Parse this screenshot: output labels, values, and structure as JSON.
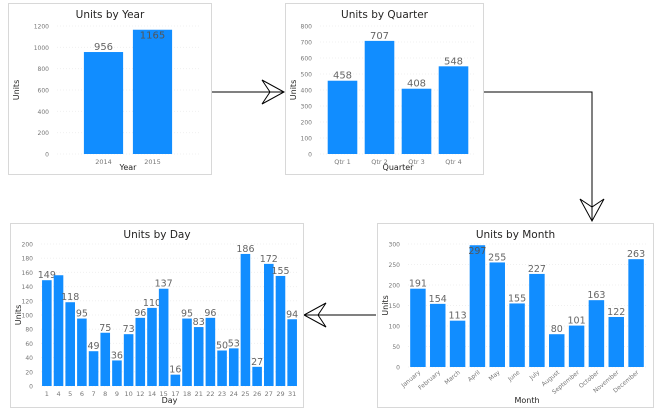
{
  "colors": {
    "bar": "#118DFF",
    "grid": "#f0f0f0",
    "tick": "#777777",
    "label": "#666666",
    "title": "#252423",
    "arrow": "#000000"
  },
  "chart_data": [
    {
      "id": "year",
      "type": "bar",
      "title": "Units by Year",
      "xlabel": "Year",
      "ylabel": "Units",
      "categories": [
        "2014",
        "2015"
      ],
      "values": [
        956,
        1165
      ],
      "data_labels": [
        "956",
        "1165"
      ],
      "ylim": [
        0,
        1200
      ],
      "yticks": [
        0,
        200,
        400,
        600,
        800,
        1000,
        1200
      ],
      "grid": true
    },
    {
      "id": "quarter",
      "type": "bar",
      "title": "Units by Quarter",
      "xlabel": "Quarter",
      "ylabel": "Units",
      "categories": [
        "Qtr 1",
        "Qtr 2",
        "Qtr 3",
        "Qtr 4"
      ],
      "values": [
        458,
        707,
        408,
        548
      ],
      "data_labels": [
        "458",
        "707",
        "408",
        "548"
      ],
      "ylim": [
        0,
        800
      ],
      "yticks": [
        0,
        100,
        200,
        300,
        400,
        500,
        600,
        700,
        800
      ],
      "grid": true
    },
    {
      "id": "month",
      "type": "bar",
      "title": "Units by Month",
      "xlabel": "Month",
      "ylabel": "Units",
      "categories": [
        "January",
        "February",
        "March",
        "April",
        "May",
        "June",
        "July",
        "August",
        "September",
        "October",
        "November",
        "December"
      ],
      "values": [
        191,
        154,
        113,
        297,
        255,
        155,
        227,
        80,
        101,
        163,
        122,
        263
      ],
      "data_labels": [
        "191",
        "154",
        "113",
        "297",
        "255",
        "155",
        "227",
        "80",
        "101",
        "163",
        "122",
        "263"
      ],
      "ylim": [
        0,
        300
      ],
      "yticks": [
        0,
        50,
        100,
        150,
        200,
        250,
        300
      ],
      "grid": true
    },
    {
      "id": "day",
      "type": "bar",
      "title": "Units by Day",
      "xlabel": "Day",
      "ylabel": "Units",
      "categories": [
        "1",
        "4",
        "5",
        "6",
        "7",
        "8",
        "9",
        "10",
        "12",
        "14",
        "15",
        "17",
        "18",
        "21",
        "22",
        "23",
        "24",
        "25",
        "26",
        "27",
        "29",
        "31"
      ],
      "values": [
        149,
        156,
        118,
        95,
        49,
        75,
        36,
        73,
        96,
        110,
        137,
        16,
        95,
        83,
        96,
        50,
        53,
        186,
        27,
        172,
        155,
        94
      ],
      "data_labels": [
        "149",
        "",
        "118",
        "95",
        "49",
        "75",
        "36",
        "73",
        "96",
        "110",
        "137",
        "16",
        "95",
        "83",
        "96",
        "50",
        "53",
        "186",
        "27",
        "172",
        "155",
        "94"
      ],
      "ylim": [
        0,
        200
      ],
      "yticks": [
        0,
        20,
        40,
        60,
        80,
        100,
        120,
        140,
        160,
        180,
        200
      ],
      "grid": true
    }
  ]
}
